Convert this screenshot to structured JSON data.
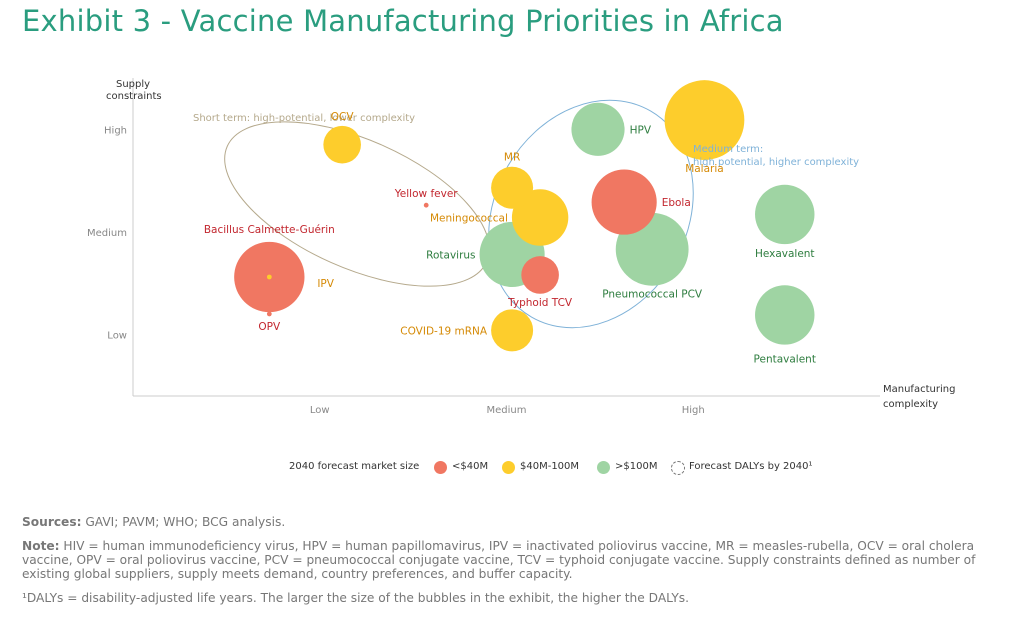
{
  "title": "Exhibit 3 - Vaccine Manufacturing Priorities in Africa",
  "colors": {
    "low": "#f07762",
    "mid": "#fdcd2c",
    "high": "#9fd4a3",
    "low_text": "#c2262e",
    "mid_text": "#d58a06",
    "high_text": "#2e7d3f",
    "short_term": "#b5a98c",
    "medium_term": "#7fb2d8",
    "axis": "#cccccc",
    "title": "#2a9d7f"
  },
  "chart_data": {
    "type": "scatter",
    "ylabel_line1": "Supply",
    "ylabel_line2": "constraints",
    "xlabel_line1": "Manufacturing",
    "xlabel_line2": "complexity",
    "x_ticks": [
      "Low",
      "Medium",
      "High"
    ],
    "y_ticks": [
      "High",
      "Medium",
      "Low"
    ],
    "xlim": [
      0,
      4
    ],
    "ylim": [
      0.4,
      3.5
    ],
    "points": [
      {
        "label": "OCV",
        "x": 1.12,
        "y": 2.85,
        "size": 4,
        "cat": "mid"
      },
      {
        "label": "Yellow fever",
        "x": 1.57,
        "y": 2.26,
        "size": 1,
        "cat": "low"
      },
      {
        "label": "MR",
        "x": 2.03,
        "y": 2.43,
        "size": 5,
        "cat": "mid"
      },
      {
        "label": "Meningococcal",
        "x": 2.18,
        "y": 2.14,
        "size": 9,
        "cat": "mid"
      },
      {
        "label": "Bacillus Calmette-Guérin",
        "x": 0.73,
        "y": 1.56,
        "size": 14,
        "cat": "low"
      },
      {
        "label": "IPV",
        "x": 0.73,
        "y": 1.56,
        "size": 1,
        "cat": "mid"
      },
      {
        "label": "OPV",
        "x": 0.73,
        "y": 1.2,
        "size": 1,
        "cat": "low"
      },
      {
        "label": "Rotavirus",
        "x": 2.03,
        "y": 1.78,
        "size": 12,
        "cat": "high"
      },
      {
        "label": "Typhoid TCV",
        "x": 2.18,
        "y": 1.58,
        "size": 4,
        "cat": "low"
      },
      {
        "label": "COVID-19 mRNA",
        "x": 2.03,
        "y": 1.04,
        "size": 5,
        "cat": "mid"
      },
      {
        "label": "HPV",
        "x": 2.49,
        "y": 3.0,
        "size": 8,
        "cat": "high"
      },
      {
        "label": "Ebola",
        "x": 2.63,
        "y": 2.29,
        "size": 12,
        "cat": "low"
      },
      {
        "label": "Pneumococcal PCV",
        "x": 2.78,
        "y": 1.83,
        "size": 15,
        "cat": "high"
      },
      {
        "label": "Malaria",
        "x": 3.06,
        "y": 3.09,
        "size": 18,
        "cat": "mid"
      },
      {
        "label": "Hexavalent",
        "x": 3.49,
        "y": 2.17,
        "size": 10,
        "cat": "high"
      },
      {
        "label": "Pentavalent",
        "x": 3.49,
        "y": 1.19,
        "size": 10,
        "cat": "high"
      }
    ],
    "annotations": [
      {
        "text": "Short term: high-potential, lower complexity"
      },
      {
        "text": "Medium term:"
      },
      {
        "text": "high potential, higher complexity"
      }
    ],
    "legend": {
      "title": "2040 forecast market size",
      "items": [
        "<$40M",
        "$40M-100M",
        ">$100M",
        "Forecast DALYs by 2040¹"
      ]
    }
  },
  "notes": {
    "sources_label": "Sources:",
    "sources_text": " GAVI; PAVM; WHO; BCG analysis.",
    "note_label": "Note:",
    "note_text": " HIV = human immunodeficiency virus, HPV = human papillomavirus, IPV = inactivated poliovirus vaccine, MR = measles-rubella, OCV = oral cholera vaccine, OPV = oral poliovirus vaccine, PCV = pneumococcal conjugate vaccine, TCV = typhoid conjugate vaccine. Supply constraints defined as number of existing global suppliers, supply meets demand, country preferences, and buffer capacity.",
    "footnote": "¹DALYs = disability-adjusted life years. The larger the size of the bubbles in the exhibit, the higher the DALYs."
  }
}
